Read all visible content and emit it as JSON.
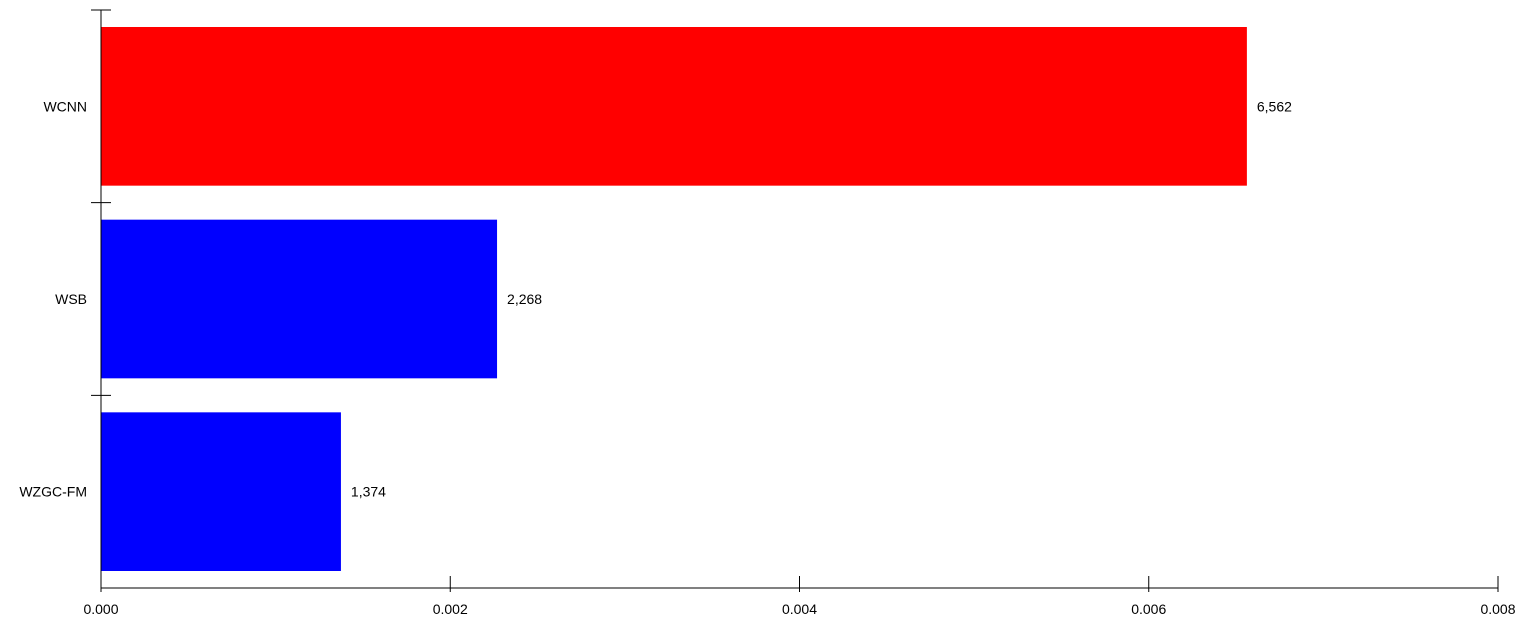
{
  "chart_data": {
    "type": "bar",
    "orientation": "horizontal",
    "categories": [
      "WCNN",
      "WSB",
      "WZGC-FM"
    ],
    "values": [
      0.006562,
      0.002268,
      0.001374
    ],
    "value_labels": [
      "6,562",
      "2,268",
      "1,374"
    ],
    "bar_colors": [
      "#ff0000",
      "#0000ff",
      "#0000ff"
    ],
    "xlim": [
      0,
      0.008
    ],
    "x_ticks": [
      0,
      0.002,
      0.004,
      0.006,
      0.008
    ],
    "x_tick_labels": [
      "0.000",
      "0.002",
      "0.004",
      "0.006",
      "0.008"
    ],
    "title": "",
    "xlabel": "",
    "ylabel": "",
    "grid": false,
    "legend": false
  }
}
